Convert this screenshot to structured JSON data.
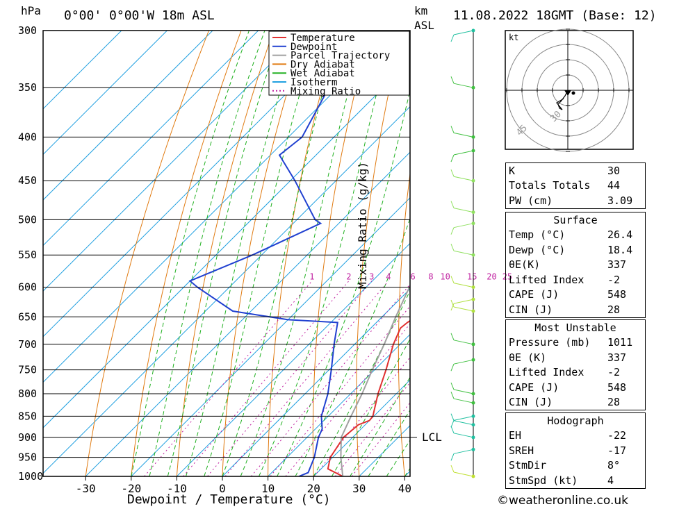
{
  "header": {
    "hpa_label": "hPa",
    "location": "0°00' 0°00'W 18m ASL",
    "km_label": "km",
    "asl_label": "ASL",
    "datetime": "11.08.2022 18GMT (Base: 12)"
  },
  "legend": [
    {
      "label": "Temperature",
      "color": "#e03030",
      "dash": false
    },
    {
      "label": "Dewpoint",
      "color": "#2040d0",
      "dash": false
    },
    {
      "label": "Parcel Trajectory",
      "color": "#a0a0a0",
      "dash": false
    },
    {
      "label": "Dry Adiabat",
      "color": "#e07a10",
      "dash": false
    },
    {
      "label": "Wet Adiabat",
      "color": "#20b020",
      "dash": false
    },
    {
      "label": "Isotherm",
      "color": "#20a0e0",
      "dash": false
    },
    {
      "label": "Mixing Ratio",
      "color": "#c020a0",
      "dash": true
    }
  ],
  "chart_data": {
    "type": "line",
    "xlabel": "Dewpoint / Temperature (°C)",
    "ylabel": "hPa",
    "xlim": [
      -40,
      40
    ],
    "ylim": [
      1000,
      300
    ],
    "y_scale": "log",
    "skew": true,
    "pressure_ticks": [
      300,
      350,
      400,
      450,
      500,
      550,
      600,
      650,
      700,
      750,
      800,
      850,
      900,
      950,
      1000
    ],
    "temp_ticks": [
      -30,
      -20,
      -10,
      0,
      10,
      20,
      30,
      40
    ],
    "mixing_ratio_labels": [
      "1",
      "2",
      "3",
      "4",
      "6",
      "8",
      "10",
      "15",
      "20",
      "25"
    ],
    "mixing_ratio_label_pressure": 590,
    "lcl_label": "LCL",
    "lcl_pressure": 900,
    "mixing_ratio_axis_label": "Mixing Ratio (g/kg)",
    "series": [
      {
        "name": "Temperature",
        "color": "#e03030",
        "points": [
          [
            1000,
            26.4
          ],
          [
            980,
            21.5
          ],
          [
            950,
            19.5
          ],
          [
            900,
            18.0
          ],
          [
            870,
            18.5
          ],
          [
            860,
            20.0
          ],
          [
            850,
            19.8
          ],
          [
            800,
            16.0
          ],
          [
            750,
            12.5
          ],
          [
            700,
            8.5
          ],
          [
            670,
            6.5
          ],
          [
            660,
            6.8
          ],
          [
            650,
            7.5
          ],
          [
            630,
            5.0
          ],
          [
            600,
            2.5
          ],
          [
            550,
            -2.5
          ],
          [
            505,
            -7.0
          ],
          [
            500,
            -8.0
          ],
          [
            450,
            -13.5
          ],
          [
            400,
            -20.5
          ],
          [
            350,
            -28.5
          ],
          [
            300,
            -39.0
          ]
        ]
      },
      {
        "name": "Dewpoint",
        "color": "#2040d0",
        "points": [
          [
            1000,
            16.8
          ],
          [
            990,
            18.0
          ],
          [
            950,
            16.0
          ],
          [
            900,
            12.5
          ],
          [
            880,
            11.5
          ],
          [
            850,
            8.5
          ],
          [
            800,
            5.0
          ],
          [
            750,
            0.5
          ],
          [
            700,
            -4.5
          ],
          [
            660,
            -8.5
          ],
          [
            655,
            -20.0
          ],
          [
            640,
            -34.0
          ],
          [
            600,
            -47.0
          ],
          [
            590,
            -50.0
          ],
          [
            550,
            -42.0
          ],
          [
            505,
            -34.0
          ],
          [
            500,
            -36.0
          ],
          [
            450,
            -49.0
          ],
          [
            420,
            -58.0
          ],
          [
            400,
            -57.0
          ],
          [
            350,
            -62.0
          ],
          [
            300,
            -70.0
          ]
        ]
      },
      {
        "name": "Parcel Trajectory",
        "color": "#a0a0a0",
        "points": [
          [
            1000,
            26.4
          ],
          [
            950,
            21.8
          ],
          [
            900,
            17.5
          ],
          [
            850,
            15.0
          ],
          [
            800,
            12.5
          ],
          [
            750,
            9.5
          ],
          [
            700,
            6.5
          ],
          [
            650,
            3.0
          ],
          [
            600,
            -0.5
          ],
          [
            550,
            -4.5
          ],
          [
            500,
            -9.0
          ],
          [
            450,
            -14.0
          ],
          [
            400,
            -19.5
          ],
          [
            350,
            -26.5
          ],
          [
            310,
            -33.0
          ]
        ]
      }
    ]
  },
  "wind_profile": [
    {
      "p": 300,
      "color": "#20c0a0"
    },
    {
      "p": 350,
      "color": "#40c040"
    },
    {
      "p": 400,
      "color": "#40c040"
    },
    {
      "p": 415,
      "color": "#40c040"
    },
    {
      "p": 450,
      "color": "#90e060"
    },
    {
      "p": 490,
      "color": "#90e060"
    },
    {
      "p": 505,
      "color": "#90e060"
    },
    {
      "p": 550,
      "color": "#90e060"
    },
    {
      "p": 600,
      "color": "#b0e040"
    },
    {
      "p": 620,
      "color": "#b0e040"
    },
    {
      "p": 640,
      "color": "#b0e040"
    },
    {
      "p": 700,
      "color": "#40c040"
    },
    {
      "p": 730,
      "color": "#40c040"
    },
    {
      "p": 800,
      "color": "#40c040"
    },
    {
      "p": 820,
      "color": "#40c040"
    },
    {
      "p": 850,
      "color": "#20c0a0"
    },
    {
      "p": 870,
      "color": "#20c0a0"
    },
    {
      "p": 900,
      "color": "#20c0a0"
    },
    {
      "p": 930,
      "color": "#20c0a0"
    },
    {
      "p": 1000,
      "color": "#c0e030"
    }
  ],
  "hodograph": {
    "unit_label": "kt",
    "ring_labels": [
      "30",
      "45"
    ],
    "trace": [
      [
        0,
        0
      ],
      [
        -2,
        -4
      ],
      [
        -5,
        -8
      ],
      [
        -7,
        -10
      ],
      [
        -6,
        -13
      ],
      [
        -4,
        -14
      ],
      [
        -8,
        -9
      ],
      [
        -3,
        -6
      ]
    ]
  },
  "indices": {
    "top": [
      {
        "key": "K",
        "value": "30"
      },
      {
        "key": "Totals Totals",
        "value": "44"
      },
      {
        "key": "PW (cm)",
        "value": "3.09"
      }
    ],
    "surface_title": "Surface",
    "surface": [
      {
        "key": "Temp (°C)",
        "value": "26.4"
      },
      {
        "key": "Dewp (°C)",
        "value": "18.4"
      },
      {
        "key": "θE(K)",
        "value": "337"
      },
      {
        "key": "Lifted Index",
        "value": "-2"
      },
      {
        "key": "CAPE (J)",
        "value": "548"
      },
      {
        "key": "CIN (J)",
        "value": "28"
      }
    ],
    "mu_title": "Most Unstable",
    "mu": [
      {
        "key": "Pressure (mb)",
        "value": "1011"
      },
      {
        "key": "θE (K)",
        "value": "337"
      },
      {
        "key": "Lifted Index",
        "value": "-2"
      },
      {
        "key": "CAPE (J)",
        "value": "548"
      },
      {
        "key": "CIN (J)",
        "value": "28"
      }
    ],
    "hodo_title": "Hodograph",
    "hodo": [
      {
        "key": "EH",
        "value": "-22"
      },
      {
        "key": "SREH",
        "value": "-17"
      },
      {
        "key": "StmDir",
        "value": "8°"
      },
      {
        "key": "StmSpd (kt)",
        "value": "4"
      }
    ]
  },
  "footer": {
    "copyright": "©weatheronline.co.uk"
  }
}
